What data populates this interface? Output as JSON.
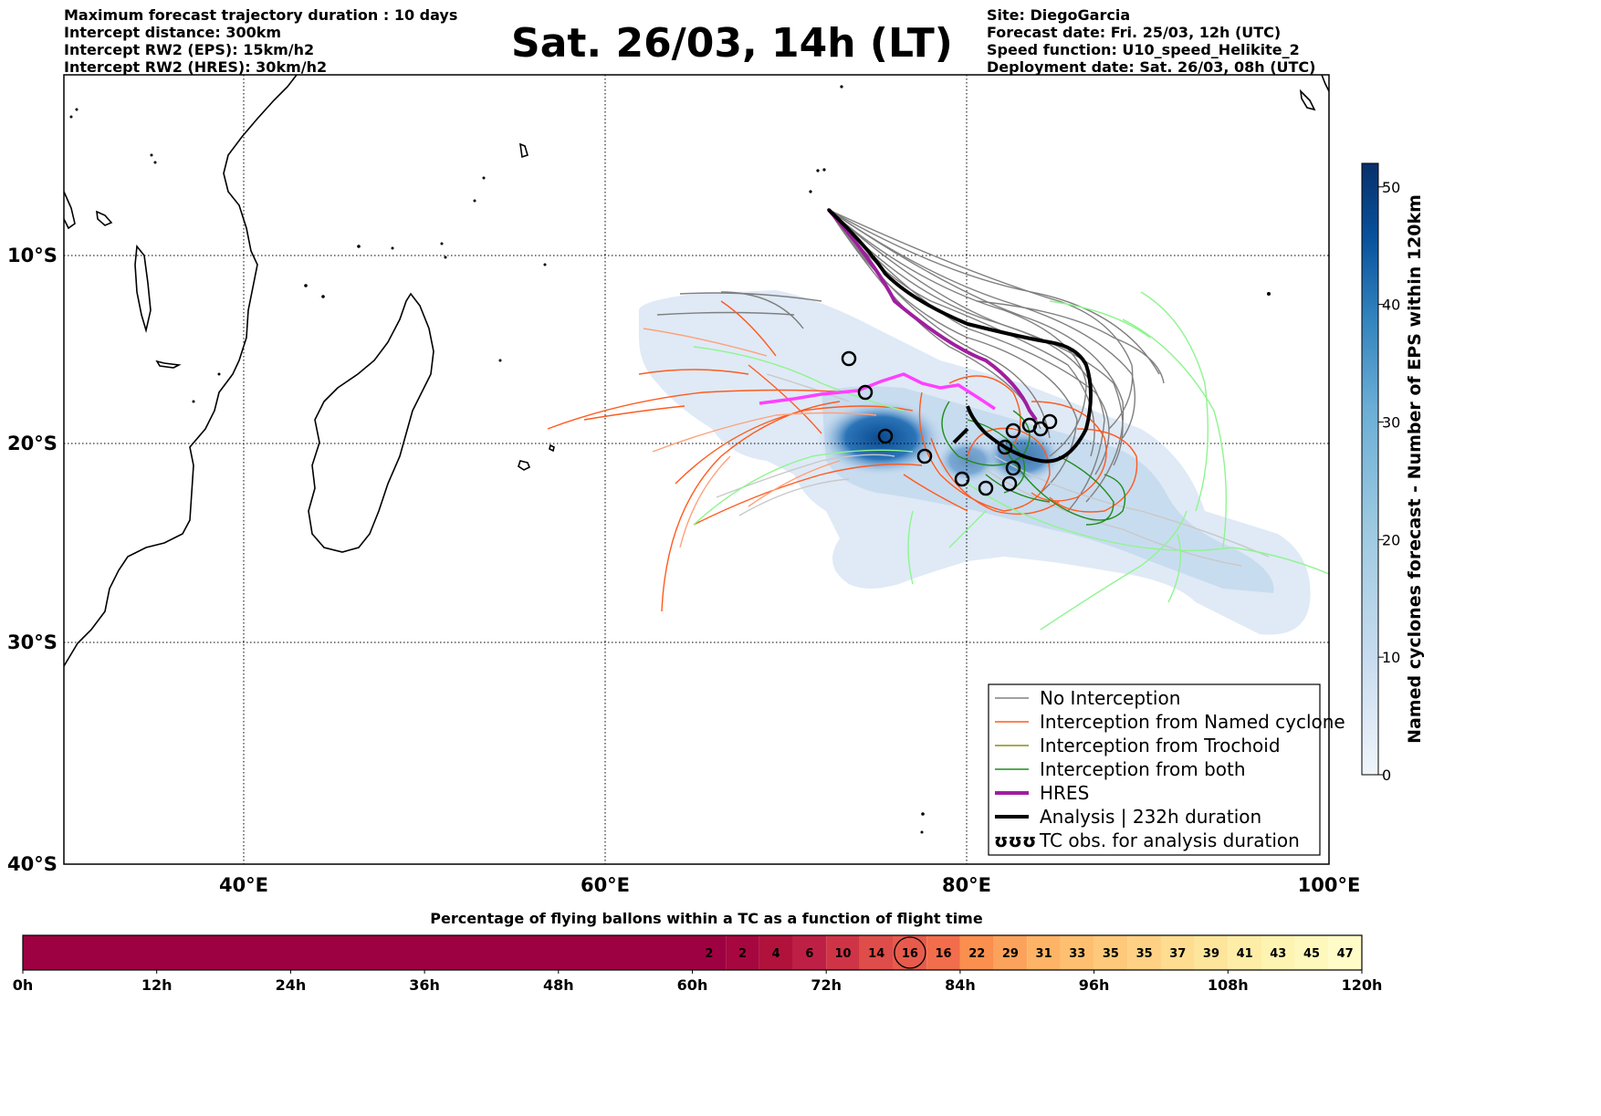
{
  "header_left": [
    "Maximum forecast trajectory duration : 10 days",
    "Intercept distance: 300km",
    "Intercept RW2 (EPS):  15km/h2",
    "Intercept RW2 (HRES): 30km/h2"
  ],
  "header_right": [
    "Site: DiegoGarcia",
    "Forecast date: Fri. 25/03, 12h (UTC)",
    "Speed function: U10_speed_Helikite_2",
    "Deployment date: Sat. 26/03, 08h (UTC)"
  ],
  "title": "Sat. 26/03, 14h (LT)",
  "map": {
    "lon_labels": [
      "40°E",
      "60°E",
      "80°E",
      "100°E"
    ],
    "lat_labels": [
      "10°S",
      "20°S",
      "30°S",
      "40°S"
    ],
    "lon_range": [
      30,
      100
    ],
    "lat_range": [
      -40,
      -1
    ]
  },
  "legend": {
    "items": [
      {
        "label": "No Interception",
        "color": "#808080",
        "style": "thin"
      },
      {
        "label": "Interception from Named cyclone",
        "color": "#ff5a1e",
        "style": "thin"
      },
      {
        "label": "Interception from Trochoid",
        "color": "#8c8c1e",
        "style": "thin"
      },
      {
        "label": "Interception from both",
        "color": "#1e8c1e",
        "style": "thin"
      },
      {
        "label": "HRES",
        "color": "#a01ea0",
        "style": "thick"
      },
      {
        "label": "Analysis | 232h duration",
        "color": "#000000",
        "style": "thick"
      },
      {
        "label": "TC obs. for analysis duration",
        "color": "#000000",
        "style": "symbol",
        "symbol": "ʊʊʊ"
      }
    ]
  },
  "colorbar": {
    "title": "Named cyclones forecast - Number of EPS within 120km",
    "ticks": [
      "0",
      "10",
      "20",
      "30",
      "40",
      "50"
    ],
    "range": [
      0,
      52
    ],
    "colors": [
      "#f0f5fb",
      "#c6dbef",
      "#9ecae1",
      "#6baed6",
      "#3182bd",
      "#08519c",
      "#08306b"
    ]
  },
  "time_bar": {
    "title": "Percentage of flying ballons within a TC as a function of flight time",
    "tick_labels": [
      "0h",
      "12h",
      "24h",
      "36h",
      "48h",
      "60h",
      "72h",
      "84h",
      "96h",
      "108h",
      "120h"
    ],
    "values": [
      "2",
      "2",
      "4",
      "6",
      "10",
      "14",
      "16",
      "16",
      "22",
      "29",
      "31",
      "33",
      "35",
      "35",
      "37",
      "39",
      "41",
      "43",
      "45",
      "47"
    ],
    "highlight_index": 6,
    "empty_color": "#9e0142"
  },
  "chart_data": {
    "type": "heatmap",
    "tracks": {
      "hres": [
        [
          68.5,
          -18.0
        ],
        [
          71,
          -17.6
        ],
        [
          74,
          -17.0
        ],
        [
          76.2,
          -16.2
        ],
        [
          78,
          -17.2
        ],
        [
          80,
          -17.0
        ],
        [
          81.5,
          -17.8
        ],
        [
          82.8,
          -18.5
        ],
        [
          83.6,
          -19.3
        ],
        [
          84.2,
          -19.5
        ]
      ],
      "analysis": [
        [
          72.5,
          -7.5
        ],
        [
          74,
          -9.5
        ],
        [
          76,
          -12.0
        ],
        [
          78,
          -13.5
        ],
        [
          80,
          -14.2
        ],
        [
          82,
          -14.6
        ],
        [
          84,
          -15.3
        ],
        [
          85.2,
          -16.0
        ],
        [
          85.4,
          -18.0
        ],
        [
          84.4,
          -19.8
        ],
        [
          83.2,
          -19.9
        ],
        [
          82.2,
          -18.5
        ],
        [
          82,
          -19.5
        ],
        [
          82.4,
          -20.0
        ]
      ]
    },
    "tc_obs": [
      [
        73.5,
        -15.2
      ],
      [
        74.5,
        -16.8
      ],
      [
        75.5,
        -19.4
      ],
      [
        77.8,
        -20.5
      ],
      [
        79.8,
        -21.6
      ],
      [
        81,
        -22.1
      ],
      [
        82.3,
        -21.8
      ],
      [
        82.5,
        -21.2
      ],
      [
        82.1,
        -20.2
      ],
      [
        83,
        -19.4
      ],
      [
        83.6,
        -19.2
      ],
      [
        84.3,
        -19.3
      ],
      [
        84.6,
        -19.5
      ]
    ]
  }
}
